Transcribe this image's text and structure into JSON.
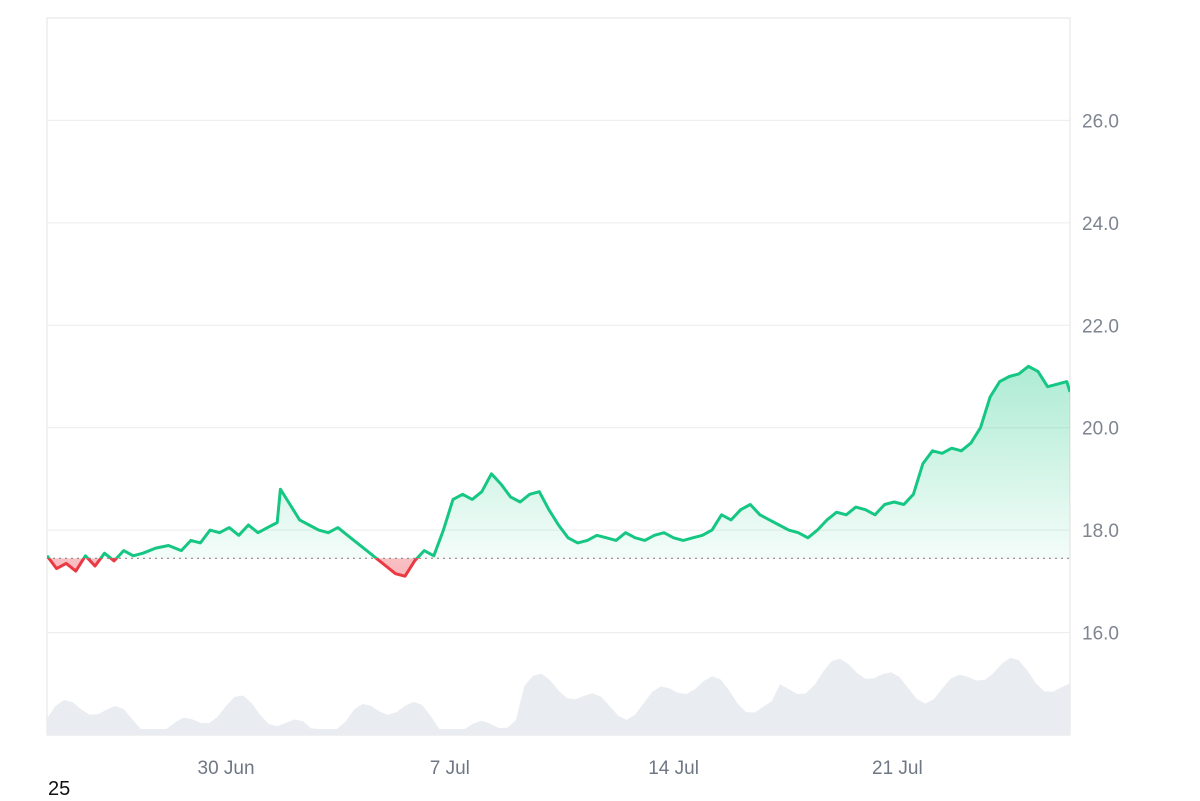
{
  "chart_data": {
    "type": "area",
    "x_ticks": [
      {
        "label": "30 Jun",
        "day": 5.6
      },
      {
        "label": "7 Jul",
        "day": 12.6
      },
      {
        "label": "14 Jul",
        "day": 19.6
      },
      {
        "label": "21 Jul",
        "day": 26.6
      }
    ],
    "y_ticks": [
      16.0,
      18.0,
      20.0,
      22.0,
      24.0,
      26.0
    ],
    "ylim": [
      14.0,
      28.0
    ],
    "xlim_days": [
      0,
      32
    ],
    "baseline": 17.45,
    "grid": true,
    "colors": {
      "up": "#16c784",
      "down": "#ea3943",
      "volume": "#e9ecf1",
      "grid": "#ececec",
      "baseline": "#888888"
    },
    "series": [
      {
        "type": "line",
        "points": [
          [
            0.0,
            17.5
          ],
          [
            0.3,
            17.25
          ],
          [
            0.6,
            17.35
          ],
          [
            0.9,
            17.2
          ],
          [
            1.2,
            17.5
          ],
          [
            1.5,
            17.3
          ],
          [
            1.8,
            17.55
          ],
          [
            2.1,
            17.4
          ],
          [
            2.4,
            17.6
          ],
          [
            2.7,
            17.5
          ],
          [
            3.0,
            17.55
          ],
          [
            3.4,
            17.65
          ],
          [
            3.8,
            17.7
          ],
          [
            4.2,
            17.6
          ],
          [
            4.5,
            17.8
          ],
          [
            4.8,
            17.75
          ],
          [
            5.1,
            18.0
          ],
          [
            5.4,
            17.95
          ],
          [
            5.7,
            18.05
          ],
          [
            6.0,
            17.9
          ],
          [
            6.3,
            18.1
          ],
          [
            6.6,
            17.95
          ],
          [
            6.9,
            18.05
          ],
          [
            7.2,
            18.15
          ],
          [
            7.3,
            18.8
          ],
          [
            7.6,
            18.5
          ],
          [
            7.9,
            18.2
          ],
          [
            8.2,
            18.1
          ],
          [
            8.5,
            18.0
          ],
          [
            8.8,
            17.95
          ],
          [
            9.1,
            18.05
          ],
          [
            9.4,
            17.9
          ],
          [
            9.7,
            17.75
          ],
          [
            10.0,
            17.6
          ],
          [
            10.3,
            17.45
          ],
          [
            10.6,
            17.3
          ],
          [
            10.9,
            17.15
          ],
          [
            11.2,
            17.1
          ],
          [
            11.5,
            17.4
          ],
          [
            11.8,
            17.6
          ],
          [
            12.1,
            17.5
          ],
          [
            12.4,
            18.0
          ],
          [
            12.7,
            18.6
          ],
          [
            13.0,
            18.7
          ],
          [
            13.3,
            18.6
          ],
          [
            13.6,
            18.75
          ],
          [
            13.9,
            19.1
          ],
          [
            14.2,
            18.9
          ],
          [
            14.5,
            18.65
          ],
          [
            14.8,
            18.55
          ],
          [
            15.1,
            18.7
          ],
          [
            15.4,
            18.75
          ],
          [
            15.7,
            18.4
          ],
          [
            16.0,
            18.1
          ],
          [
            16.3,
            17.85
          ],
          [
            16.6,
            17.75
          ],
          [
            16.9,
            17.8
          ],
          [
            17.2,
            17.9
          ],
          [
            17.5,
            17.85
          ],
          [
            17.8,
            17.8
          ],
          [
            18.1,
            17.95
          ],
          [
            18.4,
            17.85
          ],
          [
            18.7,
            17.8
          ],
          [
            19.0,
            17.9
          ],
          [
            19.3,
            17.95
          ],
          [
            19.6,
            17.85
          ],
          [
            19.9,
            17.8
          ],
          [
            20.2,
            17.85
          ],
          [
            20.5,
            17.9
          ],
          [
            20.8,
            18.0
          ],
          [
            21.1,
            18.3
          ],
          [
            21.4,
            18.2
          ],
          [
            21.7,
            18.4
          ],
          [
            22.0,
            18.5
          ],
          [
            22.3,
            18.3
          ],
          [
            22.6,
            18.2
          ],
          [
            22.9,
            18.1
          ],
          [
            23.2,
            18.0
          ],
          [
            23.5,
            17.95
          ],
          [
            23.8,
            17.85
          ],
          [
            24.1,
            18.0
          ],
          [
            24.4,
            18.2
          ],
          [
            24.7,
            18.35
          ],
          [
            25.0,
            18.3
          ],
          [
            25.3,
            18.45
          ],
          [
            25.6,
            18.4
          ],
          [
            25.9,
            18.3
          ],
          [
            26.2,
            18.5
          ],
          [
            26.5,
            18.55
          ],
          [
            26.8,
            18.5
          ],
          [
            27.1,
            18.7
          ],
          [
            27.4,
            19.3
          ],
          [
            27.7,
            19.55
          ],
          [
            28.0,
            19.5
          ],
          [
            28.3,
            19.6
          ],
          [
            28.6,
            19.55
          ],
          [
            28.9,
            19.7
          ],
          [
            29.2,
            20.0
          ],
          [
            29.5,
            20.6
          ],
          [
            29.8,
            20.9
          ],
          [
            30.1,
            21.0
          ],
          [
            30.4,
            21.05
          ],
          [
            30.7,
            21.2
          ],
          [
            31.0,
            21.1
          ],
          [
            31.3,
            20.8
          ],
          [
            31.6,
            20.85
          ],
          [
            31.9,
            20.9
          ],
          [
            32.0,
            20.7
          ]
        ]
      }
    ]
  },
  "footer_label": "25"
}
